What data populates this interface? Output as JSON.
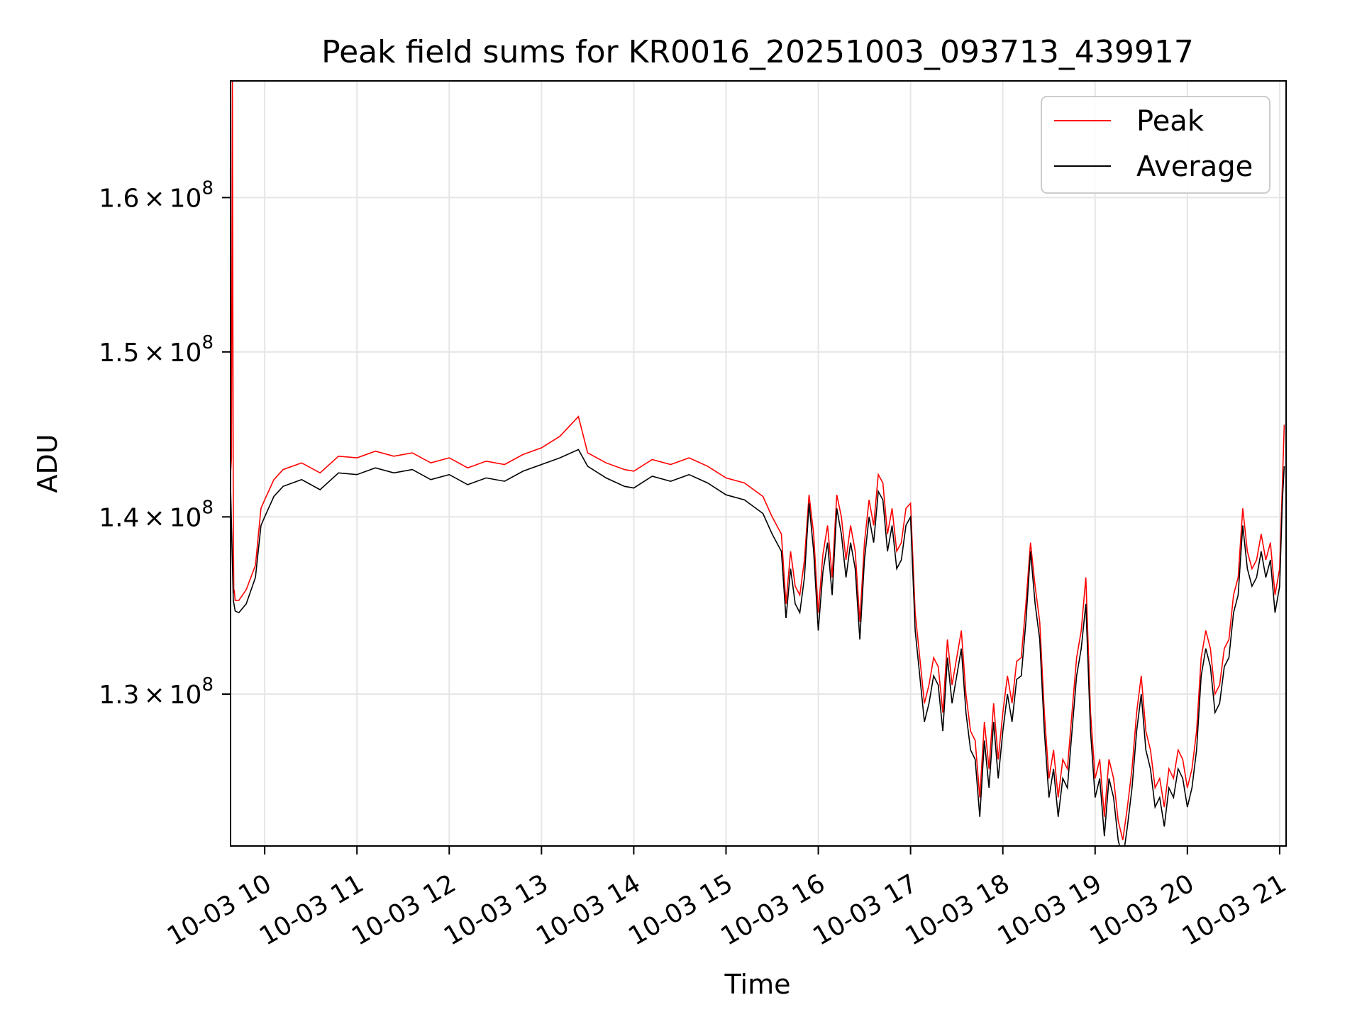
{
  "chart_data": {
    "type": "line",
    "title": "Peak field sums for KR0016_20251003_093713_439917",
    "xlabel": "Time",
    "ylabel": "ADU",
    "yscale": "log",
    "grid": true,
    "legend_position": "upper right",
    "x_unit": "hours (2025-10-03)",
    "xlim": [
      9.63,
      21.07
    ],
    "ylim": [
      122000000,
      168000000
    ],
    "x_ticks": [
      {
        "value": 10,
        "label": "10-03 10"
      },
      {
        "value": 11,
        "label": "10-03 11"
      },
      {
        "value": 12,
        "label": "10-03 12"
      },
      {
        "value": 13,
        "label": "10-03 13"
      },
      {
        "value": 14,
        "label": "10-03 14"
      },
      {
        "value": 15,
        "label": "10-03 15"
      },
      {
        "value": 16,
        "label": "10-03 16"
      },
      {
        "value": 17,
        "label": "10-03 17"
      },
      {
        "value": 18,
        "label": "10-03 18"
      },
      {
        "value": 19,
        "label": "10-03 19"
      },
      {
        "value": 20,
        "label": "10-03 20"
      },
      {
        "value": 21,
        "label": "10-03 21"
      }
    ],
    "y_ticks": [
      {
        "value": 130000000,
        "mantissa": "1.3",
        "times": "×",
        "base": "10",
        "exp": "8"
      },
      {
        "value": 140000000,
        "mantissa": "1.4",
        "times": "×",
        "base": "10",
        "exp": "8"
      },
      {
        "value": 150000000,
        "mantissa": "1.5",
        "times": "×",
        "base": "10",
        "exp": "8"
      },
      {
        "value": 160000000,
        "mantissa": "1.6",
        "times": "×",
        "base": "10",
        "exp": "8"
      }
    ],
    "series": [
      {
        "name": "Peak",
        "color": "#ff0000"
      },
      {
        "name": "Average",
        "color": "#000000"
      }
    ],
    "average_x": [
      9.63,
      9.66,
      9.68,
      9.72,
      9.8,
      9.9,
      9.96,
      10.0,
      10.1,
      10.2,
      10.4,
      10.6,
      10.8,
      11.0,
      11.2,
      11.4,
      11.6,
      11.8,
      12.0,
      12.2,
      12.4,
      12.6,
      12.8,
      13.0,
      13.2,
      13.4,
      13.5,
      13.7,
      13.9,
      14.0,
      14.2,
      14.4,
      14.6,
      14.8,
      15.0,
      15.2,
      15.4,
      15.5,
      15.6,
      15.65,
      15.7,
      15.75,
      15.8,
      15.85,
      15.9,
      15.95,
      16.0,
      16.05,
      16.1,
      16.15,
      16.2,
      16.25,
      16.3,
      16.35,
      16.4,
      16.45,
      16.5,
      16.55,
      16.6,
      16.65,
      16.7,
      16.75,
      16.8,
      16.85,
      16.9,
      16.95,
      17.0,
      17.05,
      17.1,
      17.15,
      17.2,
      17.25,
      17.3,
      17.35,
      17.4,
      17.45,
      17.5,
      17.55,
      17.6,
      17.65,
      17.7,
      17.75,
      17.8,
      17.85,
      17.9,
      17.95,
      18.0,
      18.05,
      18.1,
      18.15,
      18.2,
      18.25,
      18.3,
      18.35,
      18.4,
      18.45,
      18.5,
      18.55,
      18.6,
      18.65,
      18.7,
      18.75,
      18.8,
      18.85,
      18.9,
      18.95,
      19.0,
      19.05,
      19.1,
      19.15,
      19.2,
      19.25,
      19.3,
      19.35,
      19.4,
      19.45,
      19.5,
      19.55,
      19.6,
      19.65,
      19.7,
      19.75,
      19.8,
      19.85,
      19.9,
      19.95,
      20.0,
      20.05,
      20.1,
      20.15,
      20.2,
      20.25,
      20.3,
      20.35,
      20.4,
      20.45,
      20.5,
      20.55,
      20.6,
      20.65,
      20.7,
      20.75,
      20.8,
      20.85,
      20.9,
      20.95,
      21.0,
      21.03,
      21.05,
      21.07
    ],
    "average_y": [
      141.8,
      135.2,
      134.6,
      134.5,
      135.0,
      136.5,
      139.5,
      140.0,
      141.2,
      141.8,
      142.2,
      141.6,
      142.6,
      142.5,
      142.9,
      142.6,
      142.8,
      142.2,
      142.5,
      141.9,
      142.3,
      142.1,
      142.7,
      143.1,
      143.5,
      144.0,
      143.0,
      142.3,
      141.8,
      141.7,
      142.4,
      142.1,
      142.5,
      142.0,
      141.3,
      141.0,
      140.2,
      139.0,
      138.0,
      134.2,
      137.0,
      135.0,
      134.5,
      136.5,
      140.8,
      138.0,
      133.5,
      136.8,
      138.5,
      135.5,
      140.5,
      139.0,
      136.5,
      138.5,
      137.0,
      133.0,
      137.5,
      140.0,
      138.5,
      141.5,
      141.0,
      138.0,
      139.5,
      137.0,
      137.5,
      139.5,
      140.0,
      133.5,
      131.0,
      128.5,
      129.5,
      131.0,
      130.5,
      128.0,
      132.0,
      129.5,
      131.0,
      132.5,
      129.0,
      127.0,
      126.5,
      123.5,
      127.5,
      125.0,
      128.5,
      125.5,
      128.0,
      130.0,
      128.5,
      130.8,
      131.0,
      134.0,
      138.0,
      135.0,
      133.0,
      128.0,
      124.5,
      126.0,
      123.5,
      125.5,
      125.0,
      128.0,
      131.0,
      132.5,
      135.0,
      128.0,
      124.5,
      125.5,
      122.5,
      125.5,
      124.5,
      122.3,
      121.3,
      123.0,
      125.0,
      128.0,
      130.0,
      127.0,
      126.0,
      124.0,
      124.5,
      123.0,
      125.0,
      124.5,
      126.0,
      125.5,
      124.0,
      125.0,
      127.0,
      131.0,
      132.5,
      131.5,
      129.0,
      129.5,
      131.5,
      132.0,
      134.5,
      135.5,
      139.5,
      137.0,
      136.0,
      136.5,
      138.0,
      136.5,
      137.5,
      134.5,
      136.0,
      141.0,
      143.0
    ],
    "peak_x": [
      9.63,
      9.64,
      9.65,
      9.655,
      9.66,
      9.665,
      9.67,
      9.68,
      9.72,
      9.8,
      9.9,
      9.96,
      10.0,
      10.1,
      10.2,
      10.4,
      10.6,
      10.8,
      11.0,
      11.2,
      11.4,
      11.6,
      11.8,
      12.0,
      12.2,
      12.4,
      12.6,
      12.8,
      13.0,
      13.2,
      13.4,
      13.5,
      13.7,
      13.9,
      14.0,
      14.2,
      14.4,
      14.6,
      14.8,
      15.0,
      15.2,
      15.4,
      15.5,
      15.6,
      15.65,
      15.7,
      15.75,
      15.8,
      15.85,
      15.9,
      15.95,
      16.0,
      16.05,
      16.1,
      16.15,
      16.2,
      16.25,
      16.3,
      16.35,
      16.4,
      16.45,
      16.5,
      16.55,
      16.6,
      16.65,
      16.7,
      16.75,
      16.8,
      16.85,
      16.9,
      16.95,
      17.0,
      17.05,
      17.1,
      17.15,
      17.2,
      17.25,
      17.3,
      17.35,
      17.4,
      17.45,
      17.5,
      17.55,
      17.6,
      17.65,
      17.7,
      17.75,
      17.8,
      17.85,
      17.9,
      17.95,
      18.0,
      18.05,
      18.1,
      18.15,
      18.2,
      18.25,
      18.3,
      18.35,
      18.4,
      18.45,
      18.5,
      18.55,
      18.6,
      18.65,
      18.7,
      18.75,
      18.8,
      18.85,
      18.9,
      18.95,
      19.0,
      19.05,
      19.1,
      19.15,
      19.2,
      19.25,
      19.3,
      19.35,
      19.4,
      19.45,
      19.5,
      19.55,
      19.6,
      19.65,
      19.7,
      19.75,
      19.8,
      19.85,
      19.9,
      19.95,
      20.0,
      20.05,
      20.1,
      20.15,
      20.2,
      20.25,
      20.3,
      20.35,
      20.4,
      20.45,
      20.5,
      20.55,
      20.6,
      20.65,
      20.7,
      20.75,
      20.8,
      20.85,
      20.9,
      20.95,
      21.0,
      21.03,
      21.05,
      21.07
    ],
    "peak_y": [
      142.5,
      143.5,
      168.0,
      152.0,
      140.0,
      135.6,
      135.8,
      135.2,
      135.2,
      135.8,
      137.2,
      140.5,
      141.0,
      142.2,
      142.8,
      143.2,
      142.6,
      143.6,
      143.5,
      143.9,
      143.6,
      143.8,
      143.2,
      143.5,
      142.9,
      143.3,
      143.1,
      143.7,
      144.1,
      144.8,
      146.0,
      143.8,
      143.2,
      142.8,
      142.7,
      143.4,
      143.1,
      143.5,
      143.0,
      142.3,
      142.0,
      141.2,
      140.0,
      139.0,
      135.0,
      138.0,
      136.0,
      135.5,
      137.5,
      141.3,
      139.0,
      134.5,
      137.8,
      139.5,
      136.5,
      141.3,
      140.0,
      137.5,
      139.5,
      138.0,
      134.0,
      138.5,
      141.0,
      139.5,
      142.5,
      142.0,
      139.0,
      140.5,
      138.0,
      138.5,
      140.5,
      140.8,
      134.5,
      132.0,
      129.5,
      130.5,
      132.0,
      131.5,
      129.0,
      133.0,
      130.5,
      132.0,
      133.5,
      130.0,
      128.0,
      127.5,
      124.5,
      128.5,
      126.0,
      129.5,
      126.5,
      129.0,
      131.0,
      129.5,
      131.8,
      132.0,
      135.0,
      138.5,
      136.0,
      134.0,
      129.0,
      125.5,
      127.0,
      124.5,
      126.5,
      126.0,
      129.0,
      132.0,
      133.5,
      136.5,
      129.0,
      125.5,
      126.5,
      123.5,
      126.5,
      125.5,
      123.3,
      122.3,
      124.0,
      126.0,
      129.0,
      131.0,
      128.0,
      127.0,
      125.0,
      125.5,
      124.0,
      126.0,
      125.5,
      127.0,
      126.5,
      125.0,
      126.0,
      128.0,
      132.0,
      133.5,
      132.5,
      130.0,
      130.5,
      132.5,
      133.0,
      135.5,
      136.5,
      140.5,
      138.0,
      137.0,
      137.5,
      139.0,
      137.5,
      138.5,
      135.5,
      137.0,
      142.0,
      145.5
    ],
    "y_values_unit": "×10^6 ADU"
  },
  "legend": {
    "peak_label": "Peak",
    "average_label": "Average"
  }
}
